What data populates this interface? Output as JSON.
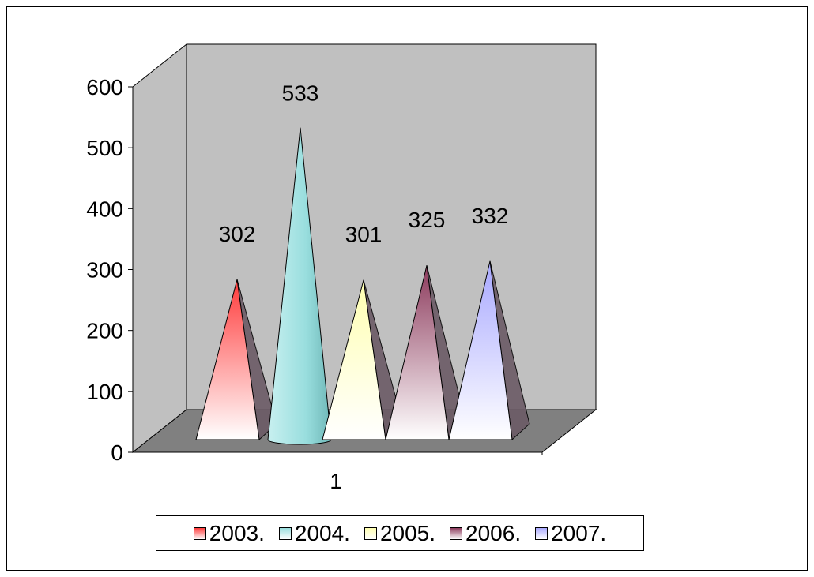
{
  "chart_data": {
    "type": "bar",
    "style": "3d-cone-pyramid",
    "categories": [
      "1"
    ],
    "series": [
      {
        "name": "2003.",
        "values": [
          302
        ],
        "color": "#ff3b3b",
        "shape": "pyramid"
      },
      {
        "name": "2004.",
        "values": [
          533
        ],
        "color": "#99dede",
        "shape": "cone"
      },
      {
        "name": "2005.",
        "values": [
          301
        ],
        "color": "#ffffb0",
        "shape": "pyramid"
      },
      {
        "name": "2006.",
        "values": [
          325
        ],
        "color": "#8c3a5c",
        "shape": "pyramid"
      },
      {
        "name": "2007.",
        "values": [
          332
        ],
        "color": "#a8a8ff",
        "shape": "pyramid"
      }
    ],
    "data_labels": [
      "302",
      "533",
      "301",
      "325",
      "332"
    ],
    "y_ticks": [
      "0",
      "100",
      "200",
      "300",
      "400",
      "500",
      "600"
    ],
    "ylim": [
      0,
      600
    ],
    "title": "",
    "xlabel": "",
    "ylabel": "",
    "grid": false,
    "legend_position": "bottom",
    "wall_color": "#c0c0c0",
    "floor_color": "#808080"
  }
}
